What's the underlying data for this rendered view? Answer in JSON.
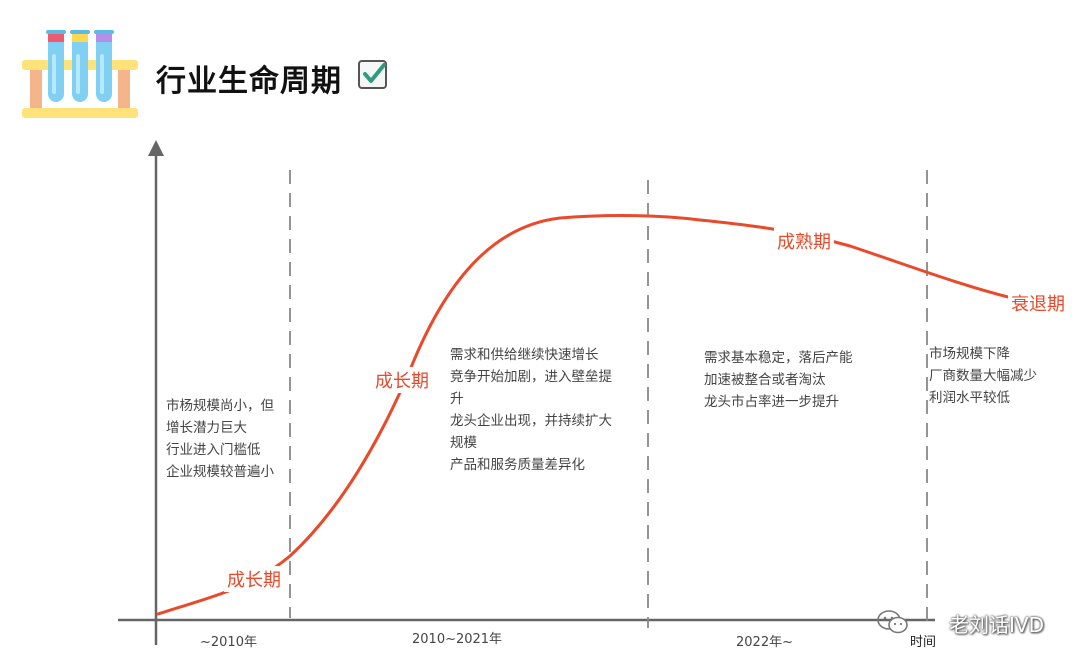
{
  "header": {
    "title": "行业生命周期"
  },
  "icons": {
    "header_illustration": "test-tubes-icon",
    "title_badge": "checkbox-checked-icon",
    "watermark_logo": "wechat-icon"
  },
  "colors": {
    "curve": "#e84a2b",
    "axis": "#666666",
    "divider": "#888888",
    "checkbox": "#2f9c7f"
  },
  "diagram": {
    "x_axis_label": "时间",
    "curve_labels": {
      "introduction": "成长期",
      "growth": "成长期",
      "maturity": "成熟期",
      "decline": "衰退期"
    },
    "notes": {
      "introduction": "市杨规模尚小，但\n增长潜力巨大\n行业进入门槛低\n企业规模较普遍小",
      "growth": "需求和供给继续快速增长\n竞争开始加剧，进入壁垒提\n升\n龙头企业出现，并持续扩大\n规模\n产品和服务质量差异化",
      "maturity": "需求基本稳定，落后产能\n加速被整合或者淘汰\n龙头市占率进一步提升",
      "decline": "市场规模下降\n厂商数量大幅减少\n利润水平较低"
    },
    "periods": {
      "p1": "~2010年",
      "p2": "2010~2021年",
      "p3": "2022年~"
    }
  },
  "watermark": {
    "text": "老刘话IVD"
  }
}
